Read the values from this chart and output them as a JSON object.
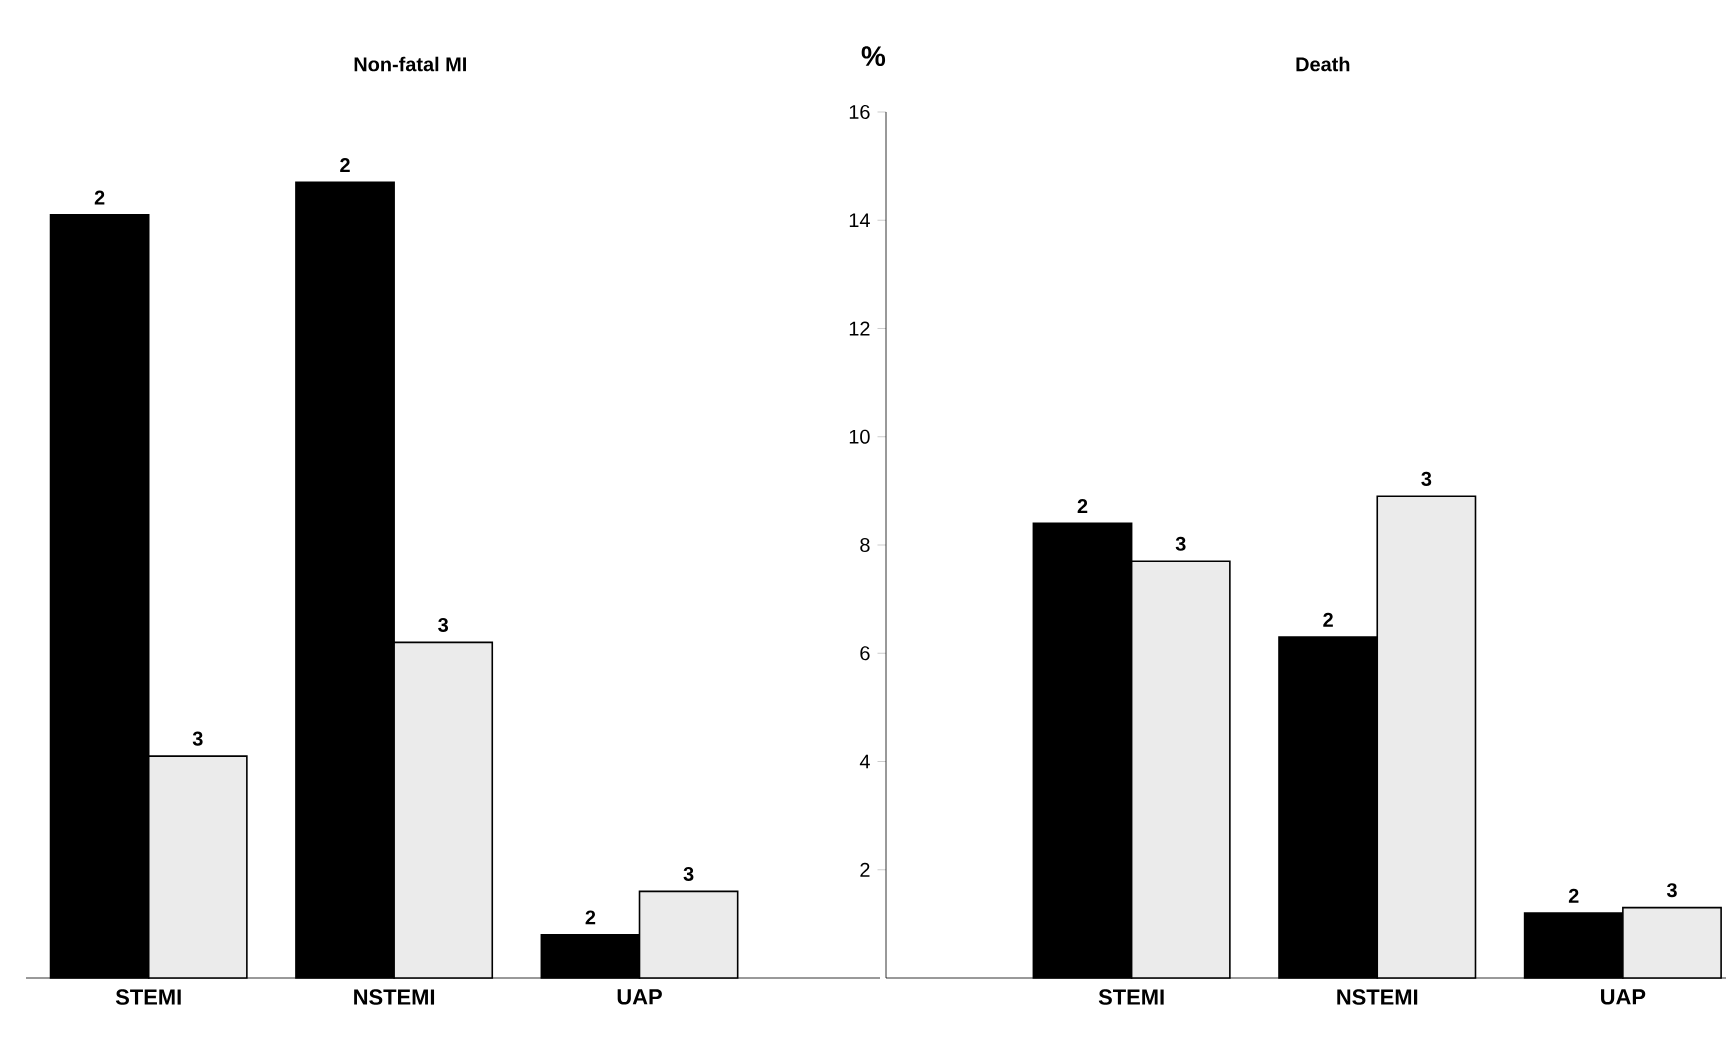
{
  "chart_data": [
    {
      "type": "bar",
      "title": "Non-fatal MI",
      "categories": [
        "STEMI",
        "NSTEMI",
        "UAP"
      ],
      "series": [
        {
          "name": "2",
          "color": "#000000",
          "values": [
            14.1,
            14.7,
            0.8
          ]
        },
        {
          "name": "3",
          "color": "#ebebeb",
          "values": [
            4.1,
            6.2,
            1.6
          ]
        }
      ],
      "ylim": [
        0,
        16
      ],
      "tick_labels": "x"
    },
    {
      "type": "bar",
      "title": "Death",
      "ylabel": "%",
      "categories": [
        "STEMI",
        "NSTEMI",
        "UAP"
      ],
      "series": [
        {
          "name": "2",
          "color": "#000000",
          "values": [
            8.4,
            6.3,
            1.2
          ]
        },
        {
          "name": "3",
          "color": "#ebebeb",
          "values": [
            7.7,
            8.9,
            1.3
          ]
        }
      ],
      "ylim": [
        0,
        16
      ],
      "yticks": [
        2,
        4,
        6,
        8,
        10,
        12,
        14,
        16
      ]
    }
  ]
}
